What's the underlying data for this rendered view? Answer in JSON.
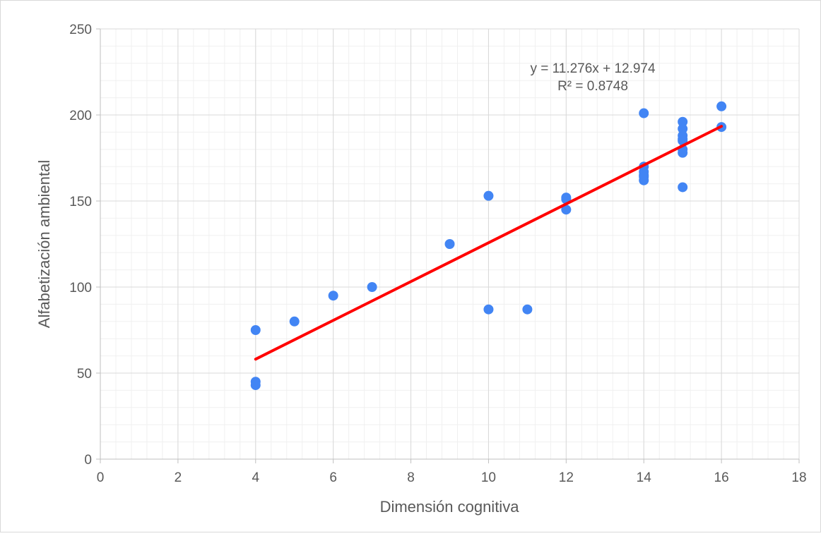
{
  "chart_data": {
    "type": "scatter",
    "title": "",
    "xlabel": "Dimensión cognitiva",
    "ylabel": "Alfabetización ambiental",
    "xlim": [
      0,
      18
    ],
    "ylim": [
      0,
      250
    ],
    "x_ticks": [
      0,
      2,
      4,
      6,
      8,
      10,
      12,
      14,
      16,
      18
    ],
    "y_ticks": [
      0,
      50,
      100,
      150,
      200,
      250
    ],
    "x_tick_labels": [
      "0",
      "2",
      "4",
      "6",
      "8",
      "10",
      "12",
      "14",
      "16",
      "18"
    ],
    "y_tick_labels": [
      "0",
      "50",
      "100",
      "150",
      "200",
      "250"
    ],
    "x_minor_step": 0.4,
    "y_minor_step": 10,
    "grid": true,
    "legend": "none",
    "series": [
      {
        "color": "#4285f4",
        "points": [
          [
            4,
            75
          ],
          [
            4,
            45
          ],
          [
            4,
            43
          ],
          [
            5,
            80
          ],
          [
            6,
            95
          ],
          [
            7,
            100
          ],
          [
            9,
            125
          ],
          [
            10,
            153
          ],
          [
            10,
            87
          ],
          [
            11,
            87
          ],
          [
            12,
            152
          ],
          [
            12,
            151
          ],
          [
            12,
            145
          ],
          [
            14,
            201
          ],
          [
            14,
            170
          ],
          [
            14,
            167
          ],
          [
            14,
            165
          ],
          [
            14,
            164
          ],
          [
            14,
            162
          ],
          [
            15,
            196
          ],
          [
            15,
            192
          ],
          [
            15,
            188
          ],
          [
            15,
            186
          ],
          [
            15,
            185
          ],
          [
            15,
            180
          ],
          [
            15,
            178
          ],
          [
            15,
            158
          ],
          [
            16,
            205
          ],
          [
            16,
            193
          ]
        ]
      }
    ],
    "trendline": {
      "type": "linear",
      "slope": 11.276,
      "intercept": 12.974,
      "x_range": [
        4,
        16
      ],
      "color": "#ff0000",
      "equation": "y = 11.276x + 12.974",
      "r_squared": "R² = 0.8748"
    }
  }
}
